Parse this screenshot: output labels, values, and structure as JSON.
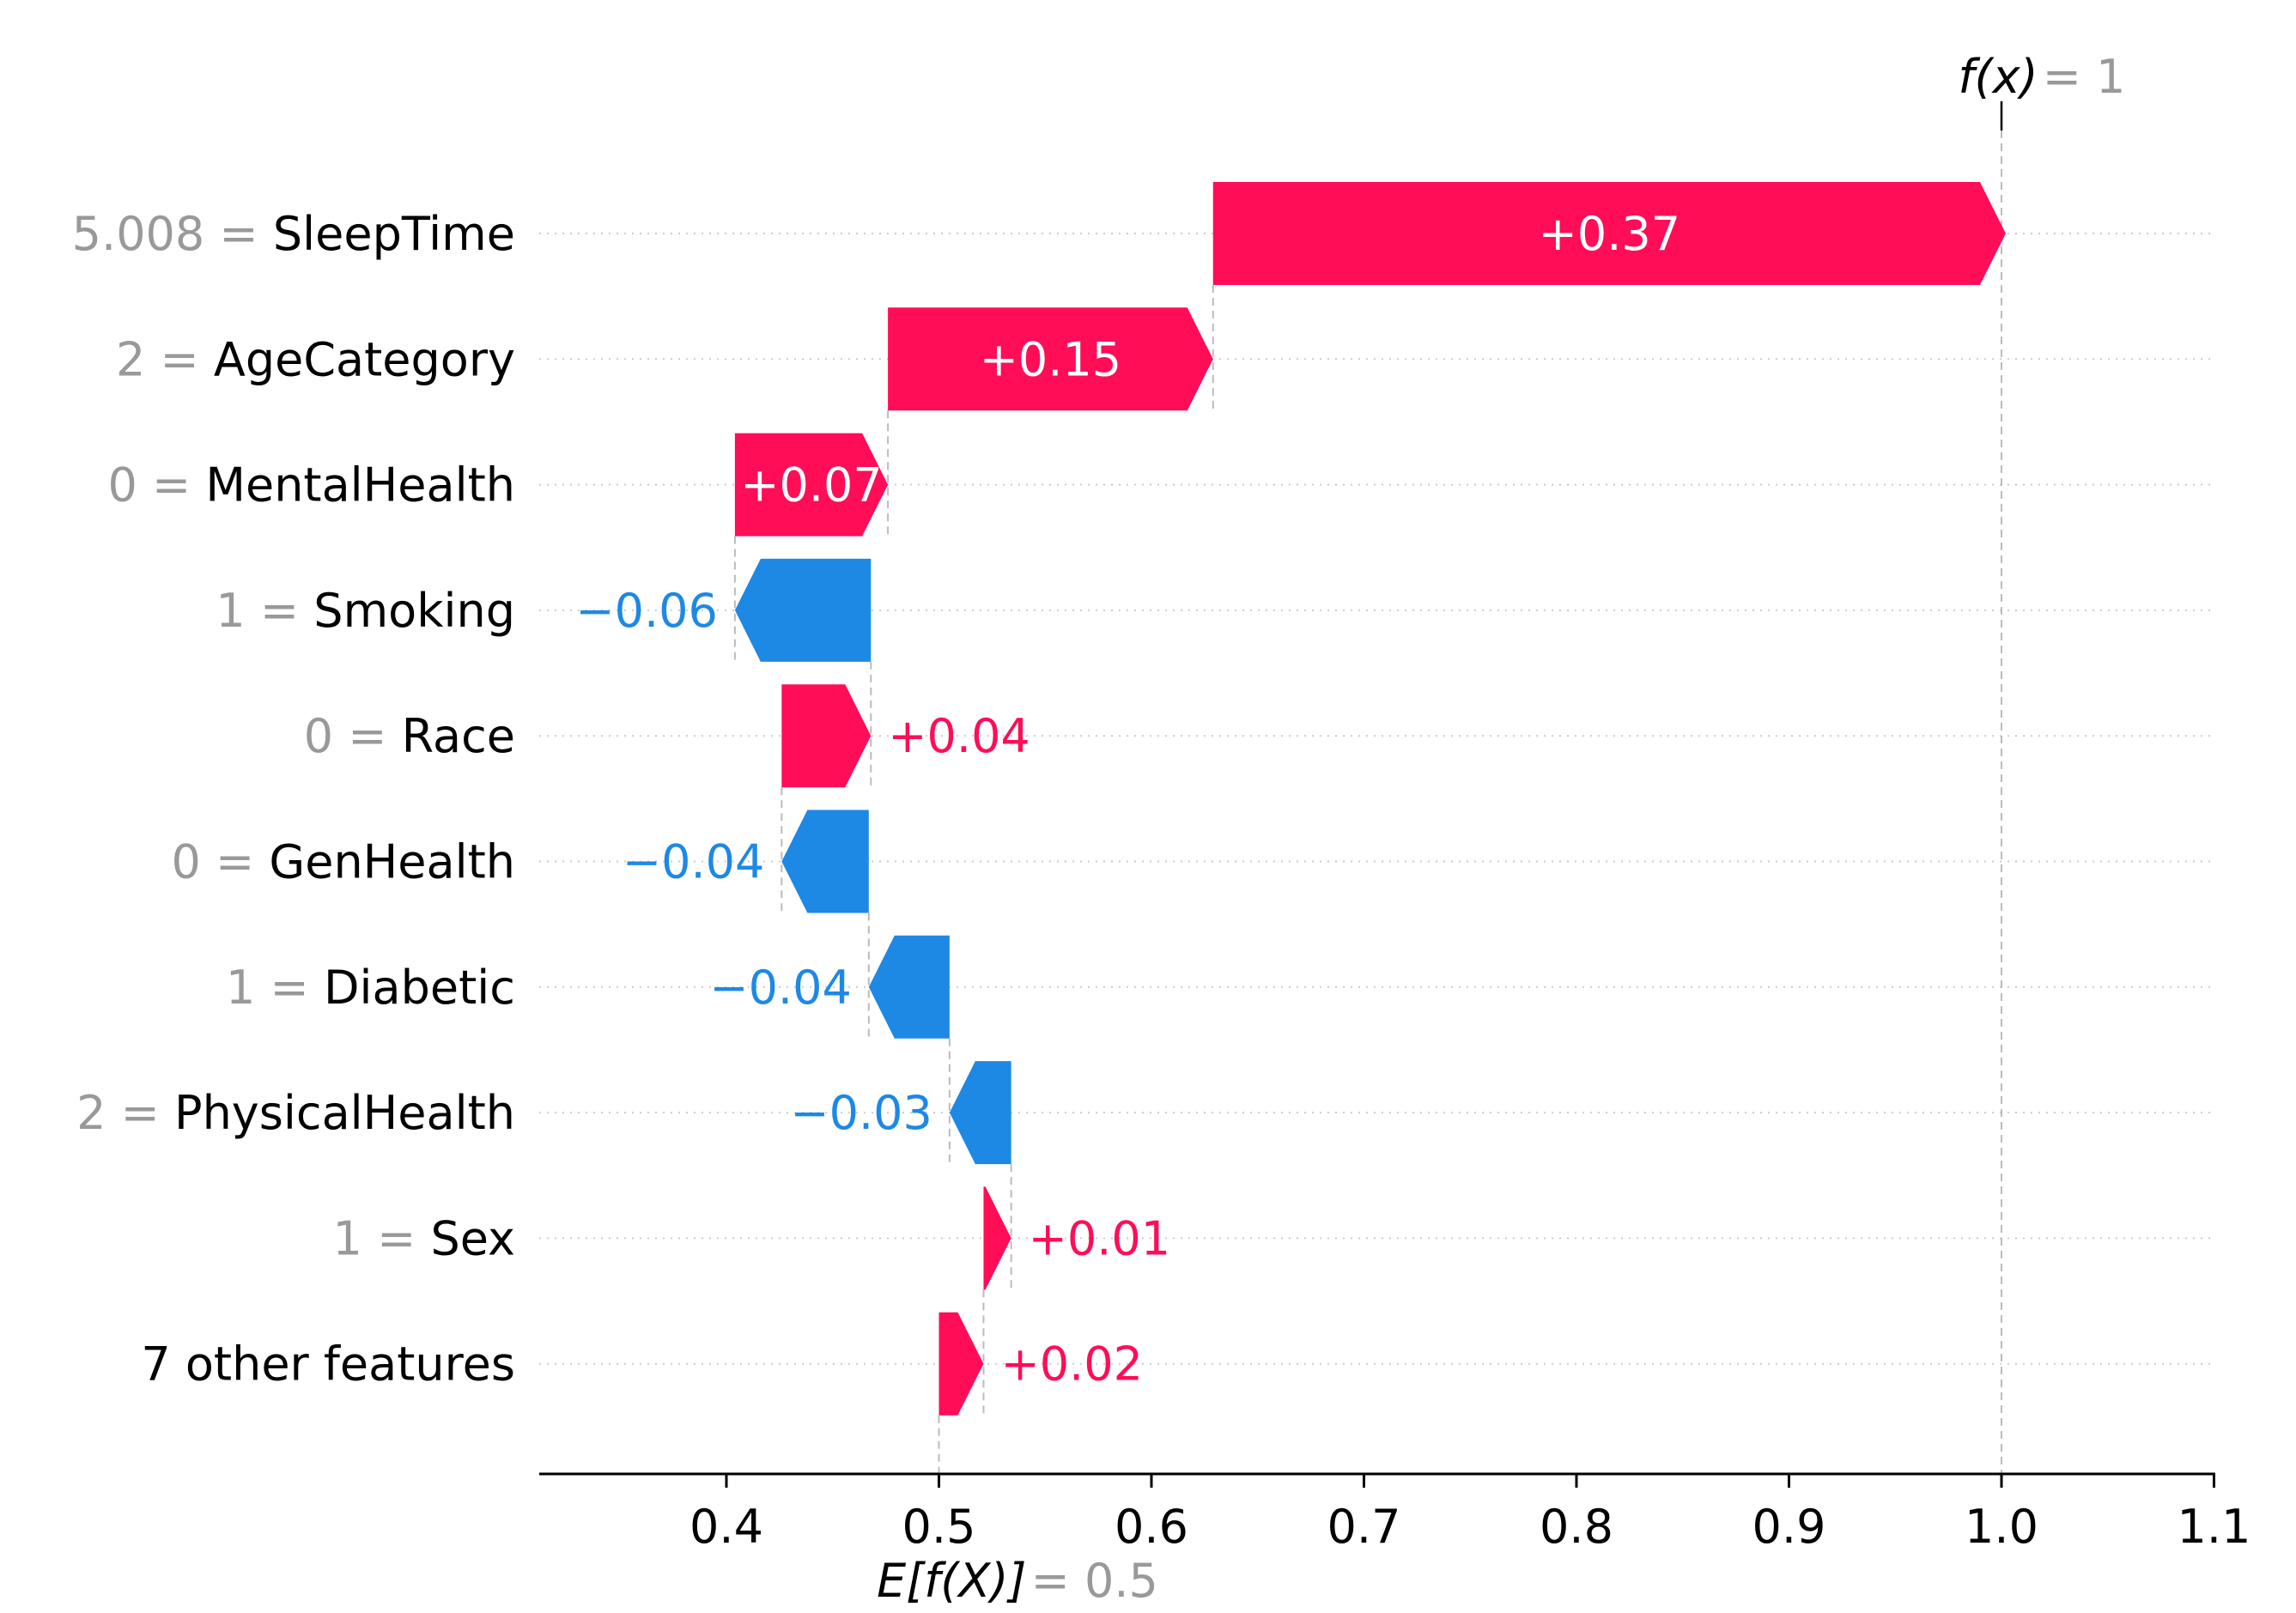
{
  "chart_data": {
    "type": "bar",
    "subtype": "shap-waterfall",
    "title": "",
    "output_annotation": {
      "func": "f(x)",
      "rest": " = 1",
      "value": 1.0
    },
    "base_annotation": {
      "func": "E[f(X)]",
      "rest": " = 0.5",
      "value": 0.5
    },
    "base_value": 0.5,
    "output_value": 1.0,
    "colors": {
      "positive": "#ff0d57",
      "negative": "#1e88e5",
      "gray_text": "#999999",
      "black_text": "#000000",
      "gridline": "#cccccc",
      "connector": "#bbbbbb"
    },
    "x_axis": {
      "tick_values": [
        0.4,
        0.5,
        0.6,
        0.7,
        0.8,
        0.9,
        1.0,
        1.1
      ],
      "tick_labels": [
        "0.4",
        "0.5",
        "0.6",
        "0.7",
        "0.8",
        "0.9",
        "1.0",
        "1.1"
      ],
      "range": [
        0.312,
        1.101
      ],
      "grid": true
    },
    "rows": [
      {
        "feature": "SleepTime",
        "data_value": "5.008",
        "shap_label": "+0.37",
        "shap": 0.373,
        "start": 0.629,
        "end": 1.002,
        "sign": "positive",
        "label_position": "inside"
      },
      {
        "feature": "AgeCategory",
        "data_value": "2",
        "shap_label": "+0.15",
        "shap": 0.153,
        "start": 0.476,
        "end": 0.629,
        "sign": "positive",
        "label_position": "inside"
      },
      {
        "feature": "MentalHealth",
        "data_value": "0",
        "shap_label": "+0.07",
        "shap": 0.072,
        "start": 0.404,
        "end": 0.476,
        "sign": "positive",
        "label_position": "inside"
      },
      {
        "feature": "Smoking",
        "data_value": "1",
        "shap_label": "−0.06",
        "shap": -0.064,
        "start": 0.468,
        "end": 0.404,
        "sign": "negative",
        "label_position": "outside"
      },
      {
        "feature": "Race",
        "data_value": "0",
        "shap_label": "+0.04",
        "shap": 0.042,
        "start": 0.426,
        "end": 0.468,
        "sign": "positive",
        "label_position": "outside"
      },
      {
        "feature": "GenHealth",
        "data_value": "0",
        "shap_label": "−0.04",
        "shap": -0.041,
        "start": 0.467,
        "end": 0.426,
        "sign": "negative",
        "label_position": "outside"
      },
      {
        "feature": "Diabetic",
        "data_value": "1",
        "shap_label": "−0.04",
        "shap": -0.038,
        "start": 0.505,
        "end": 0.467,
        "sign": "negative",
        "label_position": "outside"
      },
      {
        "feature": "PhysicalHealth",
        "data_value": "2",
        "shap_label": "−0.03",
        "shap": -0.029,
        "start": 0.534,
        "end": 0.505,
        "sign": "negative",
        "label_position": "outside"
      },
      {
        "feature": "Sex",
        "data_value": "1",
        "shap_label": "+0.01",
        "shap": 0.013,
        "start": 0.521,
        "end": 0.534,
        "sign": "positive",
        "label_position": "outside"
      },
      {
        "feature": "7 other features",
        "data_value": "",
        "shap_label": "+0.02",
        "shap": 0.021,
        "start": 0.5,
        "end": 0.521,
        "sign": "positive",
        "label_position": "outside"
      }
    ]
  }
}
